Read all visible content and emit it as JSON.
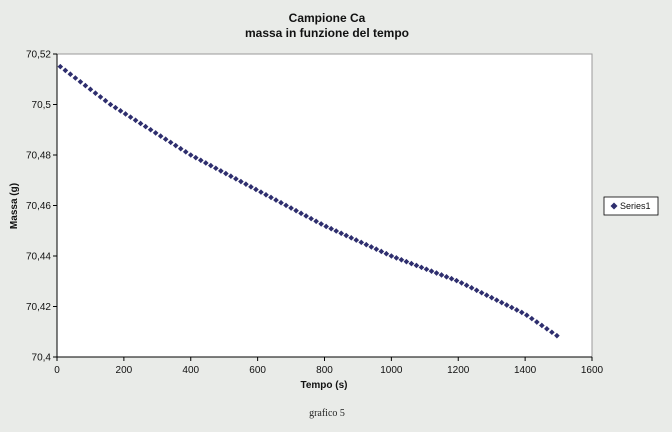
{
  "chart_data": {
    "type": "scatter",
    "title": "Campione Ca",
    "subtitle": "massa in funzione del tempo",
    "xlabel": "Tempo (s)",
    "ylabel": "Massa (g)",
    "xlim": [
      0,
      1600
    ],
    "ylim": [
      70.4,
      70.52
    ],
    "xticks": [
      0,
      200,
      400,
      600,
      800,
      1000,
      1200,
      1400,
      1600
    ],
    "xtick_labels": [
      "0",
      "200",
      "400",
      "600",
      "800",
      "1000",
      "1200",
      "1400",
      "1600"
    ],
    "yticks": [
      70.4,
      70.42,
      70.44,
      70.46,
      70.48,
      70.5,
      70.52
    ],
    "ytick_labels": [
      "70,4",
      "70,42",
      "70,44",
      "70,46",
      "70,48",
      "70,5",
      "70,52"
    ],
    "grid": false,
    "legend_position": "right",
    "marker": "diamond",
    "series": [
      {
        "name": "Series1",
        "color": "#2e2e6e",
        "x_start": 10,
        "x_step": 15,
        "points": 100,
        "anchors": [
          {
            "x": 10,
            "y": 70.515
          },
          {
            "x": 160,
            "y": 70.5
          },
          {
            "x": 400,
            "y": 70.48
          },
          {
            "x": 600,
            "y": 70.466
          },
          {
            "x": 800,
            "y": 70.452
          },
          {
            "x": 1000,
            "y": 70.44
          },
          {
            "x": 1200,
            "y": 70.43
          },
          {
            "x": 1400,
            "y": 70.417
          },
          {
            "x": 1500,
            "y": 70.408
          }
        ]
      }
    ]
  },
  "caption": "grafico 5",
  "colors": {
    "page_background": "#e9ebe8",
    "plot_background": "#ffffff",
    "plot_border": "#9a9a9a",
    "marker": "#2e2e6e"
  }
}
